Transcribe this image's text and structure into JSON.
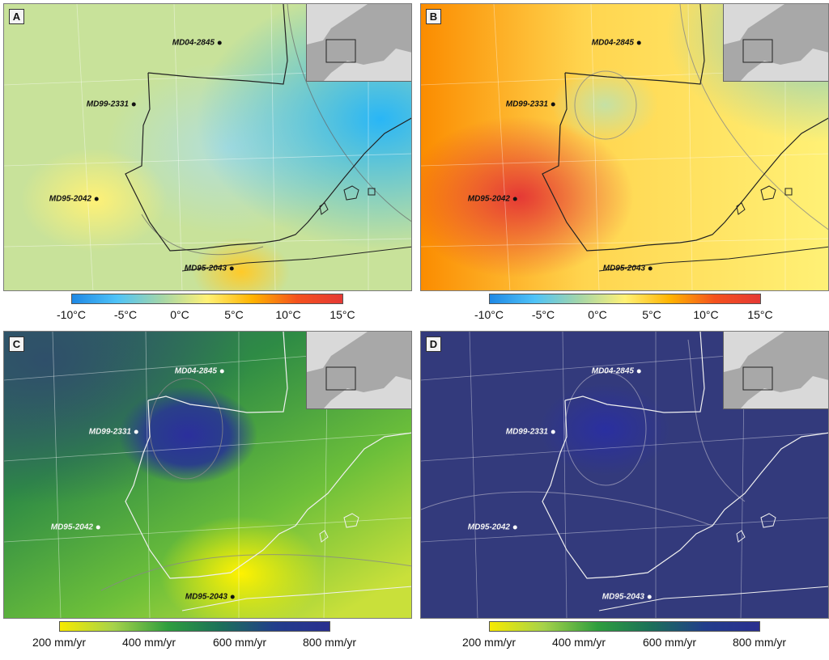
{
  "panels": [
    {
      "letter": "A",
      "sites": [
        "MD04-2845",
        "MD99-2331",
        "MD95-2042",
        "MD95-2043"
      ]
    },
    {
      "letter": "B",
      "sites": [
        "MD04-2845",
        "MD99-2331",
        "MD95-2042",
        "MD95-2043"
      ]
    },
    {
      "letter": "C",
      "sites": [
        "MD04-2845",
        "MD99-2331",
        "MD95-2042",
        "MD95-2043"
      ]
    },
    {
      "letter": "D",
      "sites": [
        "MD04-2845",
        "MD99-2331",
        "MD95-2042",
        "MD95-2043"
      ]
    }
  ],
  "legends": {
    "temperature": {
      "ticks": [
        "-10°C",
        "-5°C",
        "0°C",
        "5°C",
        "10°C",
        "15°C"
      ],
      "colors": [
        "#1e88e5",
        "#4fc3f7",
        "#a5d6a7",
        "#fff176",
        "#ffb300",
        "#f4511e",
        "#e53935"
      ]
    },
    "precipitation": {
      "ticks": [
        "200 mm/yr",
        "400 mm/yr",
        "600 mm/yr",
        "800 mm/yr"
      ],
      "colors": [
        "#f7ea00",
        "#a6d24a",
        "#2e9e3e",
        "#1b6f5a",
        "#233d8c",
        "#2a2f8f"
      ]
    }
  }
}
